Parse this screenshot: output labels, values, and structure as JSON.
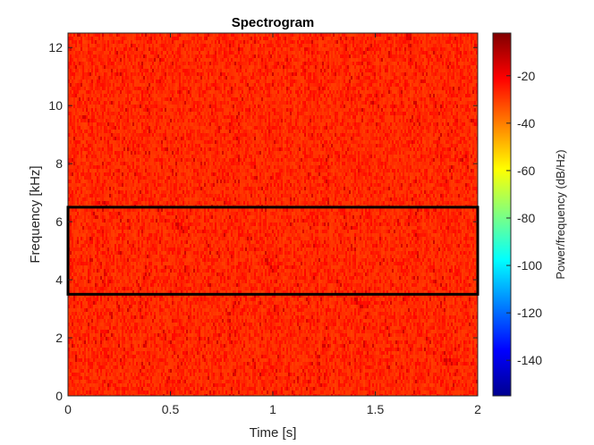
{
  "chart_data": {
    "type": "heatmap",
    "title": "Spectrogram",
    "xlabel": "Time [s]",
    "ylabel": "Frequency [kHz]",
    "xlim": [
      0,
      2
    ],
    "ylim": [
      0,
      12.5
    ],
    "xticks": [
      0,
      0.5,
      1,
      1.5,
      2
    ],
    "xtick_labels": [
      "0",
      "0.5",
      "1",
      "1.5",
      "2"
    ],
    "yticks": [
      0,
      2,
      4,
      6,
      8,
      10,
      12
    ],
    "ytick_labels": [
      "0",
      "2",
      "4",
      "6",
      "8",
      "10",
      "12"
    ],
    "colormap": "jet",
    "colorbar": {
      "label": "Power/frequency (dB/Hz)",
      "range": [
        -155,
        -2
      ],
      "ticks": [
        -140,
        -120,
        -100,
        -80,
        -60,
        -40,
        -20
      ],
      "tick_labels": [
        "-140",
        "-120",
        "-100",
        "-80",
        "-60",
        "-40",
        "-20"
      ]
    },
    "power_typical_db_hz": [
      -30,
      -22
    ],
    "highlight_region": {
      "time_range_s": [
        0,
        2
      ],
      "frequency_range_khz": [
        3.5,
        6.5
      ],
      "color": "#000000"
    }
  }
}
